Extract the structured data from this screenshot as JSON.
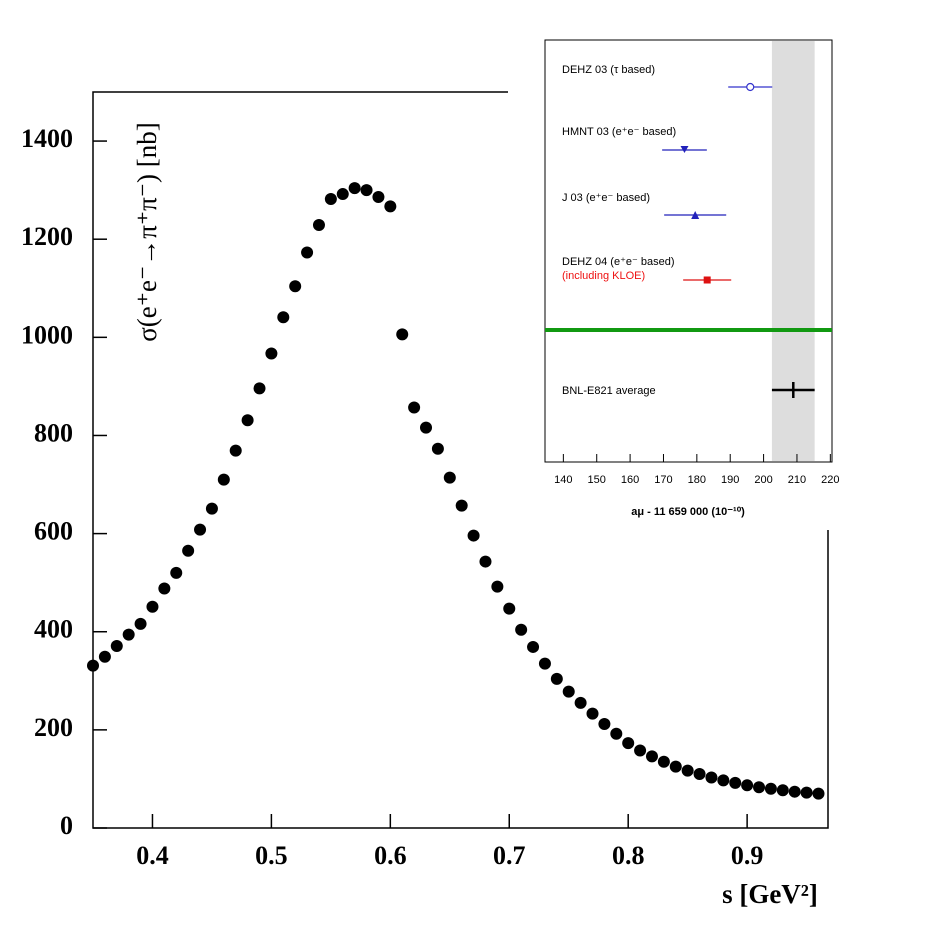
{
  "chart_data": [
    {
      "type": "scatter",
      "x": [
        0.35,
        0.36,
        0.37,
        0.38,
        0.39,
        0.4,
        0.41,
        0.42,
        0.43,
        0.44,
        0.45,
        0.46,
        0.47,
        0.48,
        0.49,
        0.5,
        0.51,
        0.52,
        0.53,
        0.54,
        0.55,
        0.56,
        0.57,
        0.58,
        0.59,
        0.6,
        0.61,
        0.62,
        0.63,
        0.64,
        0.65,
        0.66,
        0.67,
        0.68,
        0.69,
        0.7,
        0.71,
        0.72,
        0.73,
        0.74,
        0.75,
        0.76,
        0.77,
        0.78,
        0.79,
        0.8,
        0.81,
        0.82,
        0.83,
        0.84,
        0.85,
        0.86,
        0.87,
        0.88,
        0.89,
        0.9,
        0.91,
        0.92,
        0.93,
        0.94,
        0.95,
        0.96
      ],
      "values": [
        331,
        349,
        371,
        394,
        416,
        451,
        488,
        520,
        565,
        608,
        651,
        710,
        769,
        831,
        896,
        967,
        1041,
        1104,
        1173,
        1229,
        1282,
        1292,
        1304,
        1300,
        1286,
        1267,
        1006,
        857,
        816,
        773,
        714,
        657,
        596,
        543,
        492,
        447,
        404,
        369,
        335,
        304,
        278,
        255,
        233,
        212,
        192,
        173,
        158,
        146,
        135,
        125,
        117,
        110,
        103,
        97,
        92,
        87,
        83,
        80,
        77,
        74,
        72,
        70
      ],
      "color": "#000000",
      "xlim": [
        0.35,
        0.968
      ],
      "ylim": [
        0,
        1500
      ],
      "xticks": [
        0.4,
        0.5,
        0.6,
        0.7,
        0.8,
        0.9
      ],
      "yticks": [
        0,
        200,
        400,
        600,
        800,
        1000,
        1200,
        1400
      ],
      "xlabel": "s [GeV²]",
      "ylabel": "σ(e⁺e⁻→π⁺π⁻) [nb]"
    },
    {
      "type": "errorbar",
      "categories": [
        "DEHZ 03 (τ based)",
        "HMNT 03 (e⁺e⁻ based)",
        "J 03 (e⁺e⁻ based)",
        "DEHZ 04 (e⁺e⁻ based)",
        "BNL-E821 average"
      ],
      "values": [
        196.0,
        176.3,
        179.5,
        183.1,
        208.9
      ],
      "errors": [
        6.6,
        6.7,
        9.3,
        7.2,
        6.4
      ],
      "markers": [
        "open-circle",
        "triangle-down",
        "triangle-up",
        "square",
        "none"
      ],
      "colors": [
        "#3333cc",
        "#2222bb",
        "#2222bb",
        "#dd1111",
        "#000000"
      ],
      "annotation": "(including KLOE)",
      "annotation_color": "#ee1111",
      "separator_color": "#119911",
      "band_color": "#dddddd",
      "xlim": [
        134.5,
        220.5
      ],
      "xticks": [
        140,
        150,
        160,
        170,
        180,
        190,
        200,
        210,
        220
      ],
      "xlabel": "aμ - 11 659 000 (10⁻¹⁰)"
    }
  ]
}
